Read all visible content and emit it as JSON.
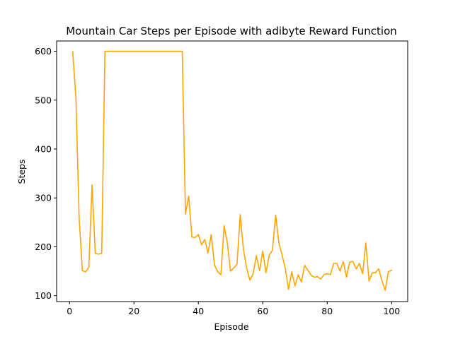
{
  "chart_data": {
    "type": "line",
    "title": "Mountain Car Steps per Episode with adibyte Reward Function",
    "xlabel": "Episode",
    "ylabel": "Steps",
    "xlim": [
      -4,
      105
    ],
    "ylim": [
      88,
      621
    ],
    "xticks": [
      0,
      20,
      40,
      60,
      80,
      100
    ],
    "yticks": [
      100,
      200,
      300,
      400,
      500,
      600
    ],
    "grid": false,
    "legend": "none",
    "series": [
      {
        "color": "#ffa500",
        "x": [
          1,
          2,
          3,
          4,
          5,
          6,
          7,
          8,
          9,
          10,
          11,
          12,
          13,
          14,
          15,
          16,
          17,
          18,
          19,
          20,
          21,
          22,
          23,
          24,
          25,
          26,
          27,
          28,
          29,
          30,
          31,
          32,
          33,
          34,
          35,
          36,
          37,
          38,
          39,
          40,
          41,
          42,
          43,
          44,
          45,
          46,
          47,
          48,
          49,
          50,
          51,
          52,
          53,
          54,
          55,
          56,
          57,
          58,
          59,
          60,
          61,
          62,
          63,
          64,
          65,
          66,
          67,
          68,
          69,
          70,
          71,
          72,
          73,
          74,
          75,
          76,
          77,
          78,
          79,
          80,
          81,
          82,
          83,
          84,
          85,
          86,
          87,
          88,
          89,
          90,
          91,
          92,
          93,
          94,
          95,
          96,
          97,
          98,
          99,
          100
        ],
        "values": [
          599,
          502,
          258,
          151,
          149,
          158,
          327,
          187,
          185,
          187,
          600,
          600,
          600,
          600,
          600,
          600,
          600,
          600,
          600,
          600,
          600,
          600,
          600,
          600,
          600,
          600,
          600,
          600,
          600,
          600,
          600,
          600,
          600,
          600,
          600,
          267,
          304,
          220,
          219,
          225,
          204,
          215,
          187,
          225,
          163,
          149,
          143,
          243,
          208,
          150,
          157,
          164,
          266,
          195,
          156,
          132,
          144,
          182,
          151,
          191,
          147,
          183,
          193,
          265,
          208,
          183,
          156,
          113,
          149,
          120,
          143,
          128,
          162,
          152,
          142,
          138,
          139,
          134,
          143,
          145,
          143,
          166,
          166,
          150,
          170,
          138,
          169,
          170,
          155,
          166,
          145,
          208,
          130,
          147,
          147,
          155,
          131,
          111,
          149,
          152
        ]
      }
    ]
  }
}
